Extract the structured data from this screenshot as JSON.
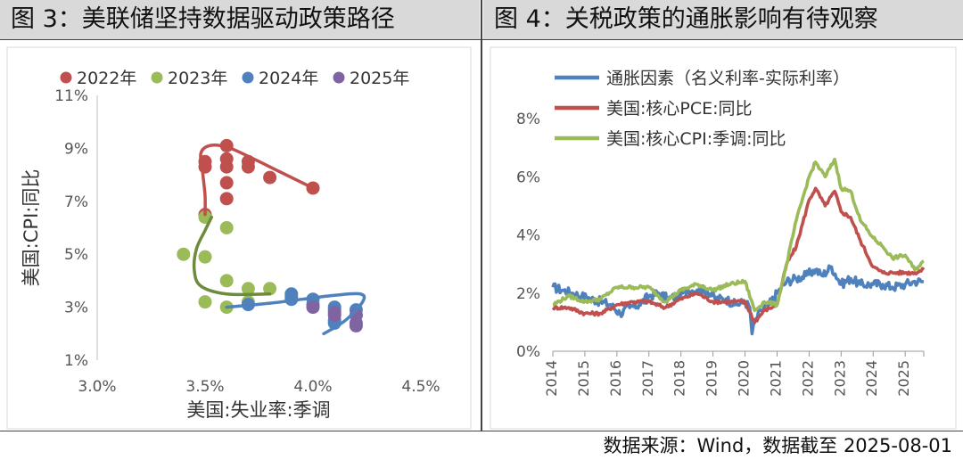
{
  "left_panel": {
    "title": "图 3：美联储坚持数据驱动政策路径",
    "colors": {
      "2022": "#c0504d",
      "2023": "#9bbb59",
      "2024": "#4f81bd",
      "2025": "#8064a2"
    },
    "chart_data": {
      "type": "scatter",
      "title": "图 3：美联储坚持数据驱动政策路径",
      "xlabel": "美国:失业率:季调",
      "ylabel": "美国:CPI:同比",
      "xlim": [
        3.0,
        4.5
      ],
      "ylim": [
        1,
        11
      ],
      "xticks": [
        "3.0%",
        "3.5%",
        "4.0%",
        "4.5%"
      ],
      "yticks": [
        "1%",
        "3%",
        "5%",
        "7%",
        "9%",
        "11%"
      ],
      "legend": [
        "2022年",
        "2023年",
        "2024年",
        "2025年"
      ],
      "series": [
        {
          "name": "2022年",
          "points": [
            [
              3.5,
              8.5
            ],
            [
              3.5,
              8.3
            ],
            [
              3.6,
              9.1
            ],
            [
              3.6,
              8.6
            ],
            [
              3.6,
              8.3
            ],
            [
              3.6,
              7.7
            ],
            [
              3.6,
              7.1
            ],
            [
              3.7,
              8.5
            ],
            [
              3.7,
              8.3
            ],
            [
              3.8,
              7.9
            ],
            [
              4.0,
              7.5
            ],
            [
              3.5,
              6.5
            ]
          ]
        },
        {
          "name": "2023年",
          "points": [
            [
              3.5,
              6.4
            ],
            [
              3.6,
              6.0
            ],
            [
              3.4,
              5.0
            ],
            [
              3.5,
              4.9
            ],
            [
              3.6,
              4.0
            ],
            [
              3.6,
              3.0
            ],
            [
              3.5,
              3.2
            ],
            [
              3.7,
              3.7
            ],
            [
              3.8,
              3.7
            ],
            [
              3.7,
              3.2
            ]
          ]
        },
        {
          "name": "2024年",
          "points": [
            [
              3.7,
              3.1
            ],
            [
              3.9,
              3.5
            ],
            [
              3.9,
              3.3
            ],
            [
              4.0,
              3.3
            ],
            [
              4.0,
              3.1
            ],
            [
              4.1,
              3.0
            ],
            [
              4.1,
              2.9
            ],
            [
              4.1,
              2.5
            ],
            [
              4.2,
              2.9
            ],
            [
              4.2,
              2.7
            ],
            [
              4.1,
              2.4
            ],
            [
              3.9,
              3.4
            ]
          ]
        },
        {
          "name": "2025年",
          "points": [
            [
              4.0,
              3.0
            ],
            [
              4.1,
              2.8
            ],
            [
              4.2,
              2.4
            ],
            [
              4.2,
              2.3
            ],
            [
              4.1,
              2.7
            ],
            [
              4.2,
              2.7
            ]
          ]
        }
      ],
      "trendlines": [
        {
          "name": "2022年",
          "points": [
            [
              4.0,
              7.5
            ],
            [
              3.85,
              8.1
            ],
            [
              3.7,
              8.7
            ],
            [
              3.6,
              9.05
            ],
            [
              3.52,
              9.1
            ],
            [
              3.48,
              8.8
            ],
            [
              3.49,
              8.0
            ],
            [
              3.5,
              7.2
            ],
            [
              3.5,
              6.5
            ]
          ]
        },
        {
          "name": "2023年",
          "points": [
            [
              3.53,
              6.4
            ],
            [
              3.5,
              5.9
            ],
            [
              3.46,
              5.2
            ],
            [
              3.45,
              4.4
            ],
            [
              3.48,
              3.8
            ],
            [
              3.6,
              3.5
            ],
            [
              3.8,
              3.5
            ]
          ]
        },
        {
          "name": "2024年",
          "points": [
            [
              3.6,
              3.0
            ],
            [
              3.8,
              3.15
            ],
            [
              3.95,
              3.3
            ],
            [
              4.1,
              3.45
            ],
            [
              4.22,
              3.5
            ],
            [
              4.23,
              3.2
            ],
            [
              4.15,
              2.5
            ],
            [
              4.05,
              2.0
            ]
          ]
        }
      ]
    }
  },
  "right_panel": {
    "title": "图 4：关税政策的通胀影响有待观察",
    "colors": {
      "inflation_factor": "#4f81bd",
      "core_pce": "#c0504d",
      "core_cpi": "#9bbb59"
    },
    "chart_data": {
      "type": "line",
      "title": "图 4：关税政策的通胀影响有待观察",
      "xlabel": "",
      "ylabel": "",
      "xlim": [
        2014,
        2025.58
      ],
      "ylim": [
        0,
        8
      ],
      "xticks": [
        "2014",
        "2015",
        "2016",
        "2017",
        "2018",
        "2019",
        "2020",
        "2021",
        "2022",
        "2023",
        "2024",
        "2025"
      ],
      "yticks": [
        "0%",
        "2%",
        "4%",
        "6%",
        "8%"
      ],
      "series": [
        {
          "name": "通胀因素(名义利率-实际利率)",
          "x": [
            2014,
            2014.3,
            2014.6,
            2014.9,
            2015.2,
            2015.5,
            2015.8,
            2016.1,
            2016.4,
            2016.7,
            2017,
            2017.3,
            2017.6,
            2017.9,
            2018.2,
            2018.5,
            2018.8,
            2019.1,
            2019.4,
            2019.7,
            2020,
            2020.15,
            2020.22,
            2020.3,
            2020.5,
            2020.75,
            2021,
            2021.3,
            2021.6,
            2021.9,
            2022.2,
            2022.4,
            2022.7,
            2023,
            2023.3,
            2023.6,
            2024,
            2024.3,
            2024.6,
            2025,
            2025.3,
            2025.58
          ],
          "values": [
            2.2,
            2.1,
            2.0,
            1.9,
            1.8,
            1.7,
            1.6,
            1.3,
            1.5,
            1.6,
            1.9,
            2.0,
            1.8,
            1.9,
            2.1,
            2.1,
            2.1,
            1.8,
            1.8,
            1.6,
            1.7,
            1.5,
            0.6,
            1.0,
            1.4,
            1.6,
            2.0,
            2.4,
            2.5,
            2.6,
            2.8,
            2.6,
            2.9,
            2.3,
            2.5,
            2.3,
            2.3,
            2.3,
            2.2,
            2.3,
            2.4,
            2.4
          ]
        },
        {
          "name": "美国:核心PCE:同比",
          "x": [
            2014,
            2014.5,
            2015,
            2015.5,
            2016,
            2016.5,
            2017,
            2017.5,
            2018,
            2018.5,
            2019,
            2019.5,
            2020,
            2020.3,
            2020.6,
            2021,
            2021.3,
            2021.6,
            2022,
            2022.2,
            2022.5,
            2022.8,
            2023,
            2023.3,
            2023.6,
            2024,
            2024.3,
            2024.6,
            2025,
            2025.3,
            2025.58
          ],
          "values": [
            1.5,
            1.5,
            1.3,
            1.3,
            1.6,
            1.7,
            1.7,
            1.5,
            1.8,
            2.0,
            1.7,
            1.7,
            1.7,
            1.0,
            1.4,
            1.6,
            3.0,
            3.6,
            5.2,
            5.6,
            5.0,
            5.5,
            4.8,
            4.6,
            3.8,
            2.9,
            2.7,
            2.7,
            2.7,
            2.7,
            2.8
          ]
        },
        {
          "name": "美国:核心CPI:季调:同比",
          "x": [
            2014,
            2014.5,
            2015,
            2015.5,
            2016,
            2016.5,
            2017,
            2017.5,
            2018,
            2018.5,
            2019,
            2019.5,
            2020,
            2020.3,
            2020.6,
            2021,
            2021.3,
            2021.6,
            2022,
            2022.2,
            2022.5,
            2022.8,
            2023,
            2023.3,
            2023.6,
            2024,
            2024.3,
            2024.6,
            2025,
            2025.3,
            2025.58
          ],
          "values": [
            1.6,
            1.9,
            1.7,
            1.8,
            2.2,
            2.2,
            2.2,
            1.7,
            2.1,
            2.3,
            2.1,
            2.3,
            2.4,
            1.4,
            1.7,
            1.6,
            3.0,
            4.5,
            6.0,
            6.5,
            6.0,
            6.6,
            5.6,
            5.5,
            4.5,
            3.9,
            3.6,
            3.2,
            3.3,
            2.8,
            3.1
          ]
        }
      ]
    }
  },
  "footer": {
    "source": "数据来源：Wind，数据截至 2025-08-01"
  }
}
